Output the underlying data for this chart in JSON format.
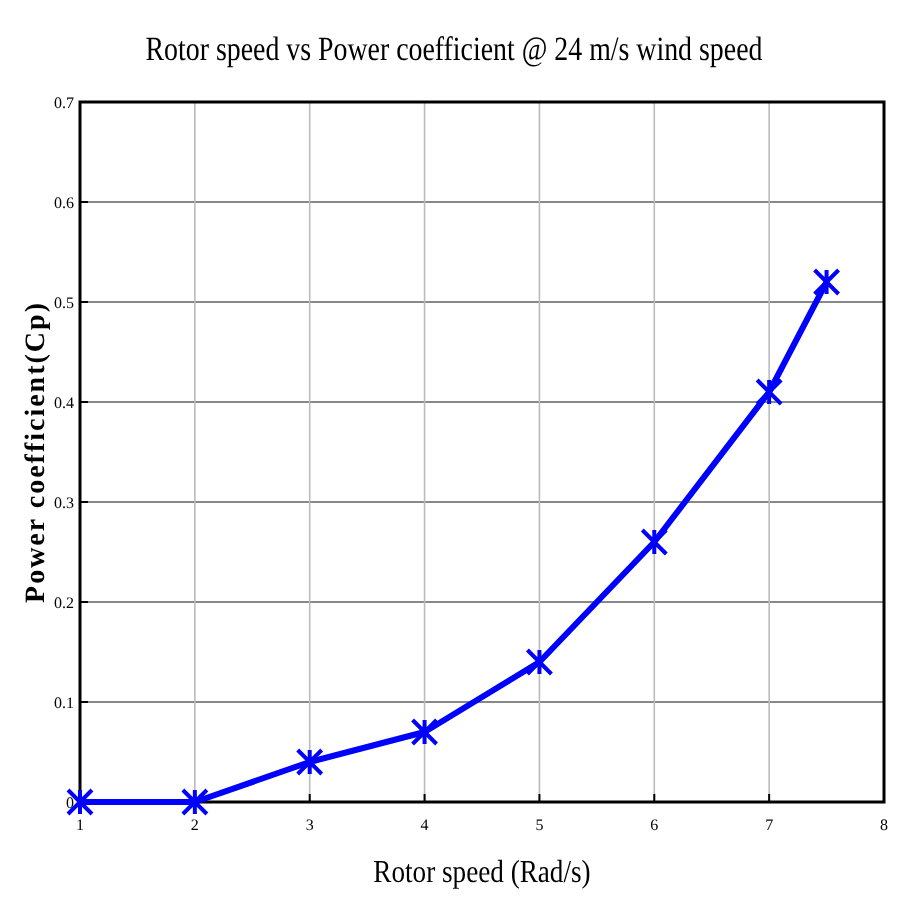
{
  "chart_data": {
    "type": "line",
    "title": "Rotor speed vs Power coefficient @ 24 m/s wind speed",
    "xlabel": "Rotor speed (Rad/s)",
    "ylabel": "Power coefficient(Cp)",
    "x": [
      1,
      2,
      3,
      4,
      5,
      6,
      7,
      7.5
    ],
    "series": [
      {
        "color": "#0000ff",
        "values": [
          0,
          0,
          0.04,
          0.07,
          0.14,
          0.26,
          0.41,
          0.52
        ]
      }
    ],
    "xlim": [
      1,
      8
    ],
    "xticks": [
      1,
      2,
      3,
      4,
      5,
      6,
      7,
      8
    ],
    "ylim": [
      0,
      0.7
    ],
    "yticks": [
      0,
      0.1,
      0.2,
      0.3,
      0.4,
      0.5,
      0.6,
      0.7
    ],
    "grid": true,
    "marker": "cross",
    "line_style": "solid"
  }
}
